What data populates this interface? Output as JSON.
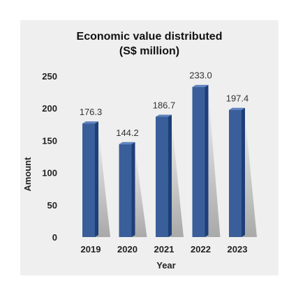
{
  "chart_data": {
    "type": "bar",
    "title": "Economic value distributed",
    "subtitle": "(S$ million)",
    "xlabel": "Year",
    "ylabel": "Amount",
    "categories": [
      "2019",
      "2020",
      "2021",
      "2022",
      "2023"
    ],
    "values": [
      176.3,
      144.2,
      186.7,
      233.0,
      197.4
    ],
    "value_labels": [
      "176.3",
      "144.2",
      "186.7",
      "233.0",
      "197.4"
    ],
    "ylim": [
      0,
      250
    ],
    "yticks": [
      0,
      50,
      100,
      150,
      200,
      250
    ],
    "grid": false,
    "legend": "none",
    "colors": {
      "bar_front": "#3a5e99",
      "bar_side": "#1d3f78",
      "bar_top": "#5d82bd",
      "panel_background": "#efefef"
    }
  }
}
